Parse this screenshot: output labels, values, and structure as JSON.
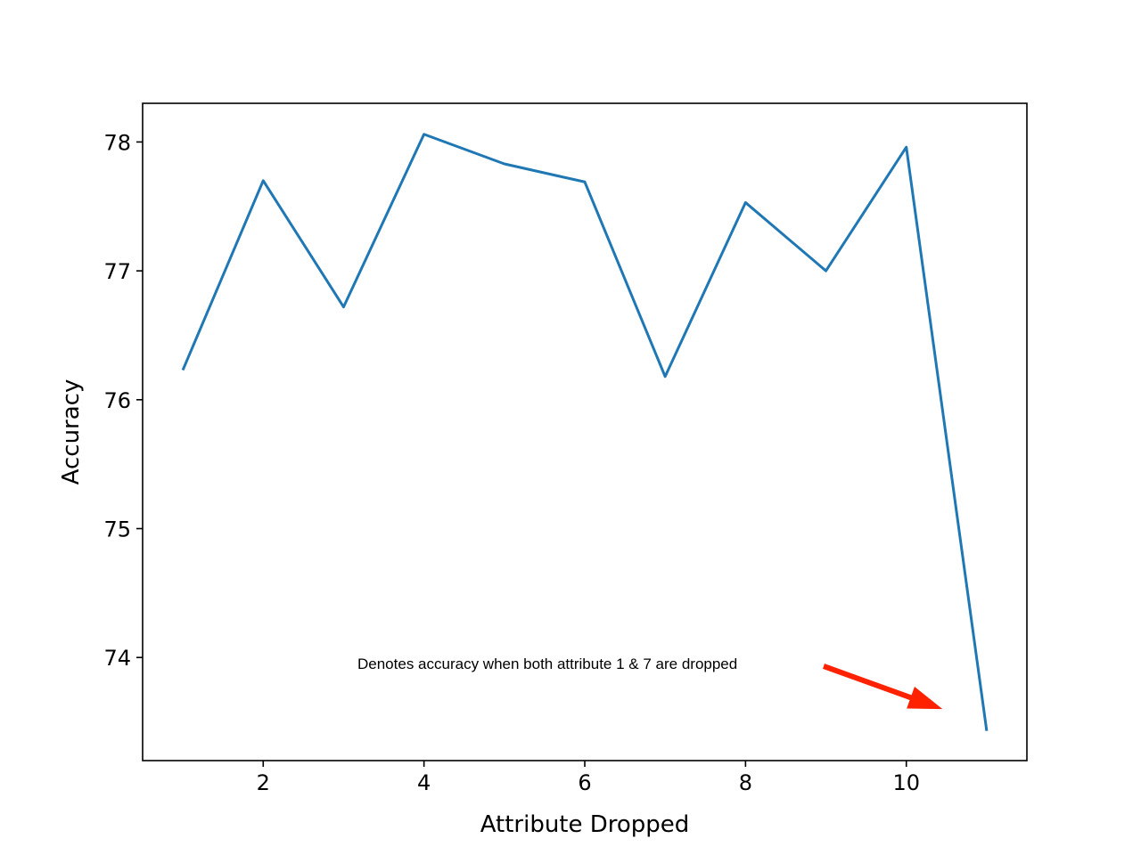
{
  "colors": {
    "series": "#1f77b4",
    "annotation_arrow": "#ff2200",
    "axes": "#000000",
    "background": "#ffffff"
  },
  "chart_data": {
    "type": "line",
    "title": "",
    "xlabel": "Attribute Dropped",
    "ylabel": "Accuracy",
    "xlim": [
      0.5,
      11.5
    ],
    "ylim": [
      73.2,
      78.3
    ],
    "xticks": [
      2,
      4,
      6,
      8,
      10
    ],
    "yticks": [
      74,
      75,
      76,
      77,
      78
    ],
    "grid": false,
    "legend": "none",
    "series": [
      {
        "x": [
          1,
          2,
          3,
          4,
          5,
          6,
          7,
          8,
          9,
          10,
          11
        ],
        "values": [
          76.23,
          77.7,
          76.72,
          78.06,
          77.83,
          77.69,
          76.18,
          77.53,
          77.0,
          77.96,
          73.43
        ]
      }
    ],
    "annotations": [
      {
        "text": "Denotes accuracy when both attribute 1 & 7 are dropped",
        "arrow_to": [
          10.45,
          73.6
        ]
      }
    ]
  }
}
